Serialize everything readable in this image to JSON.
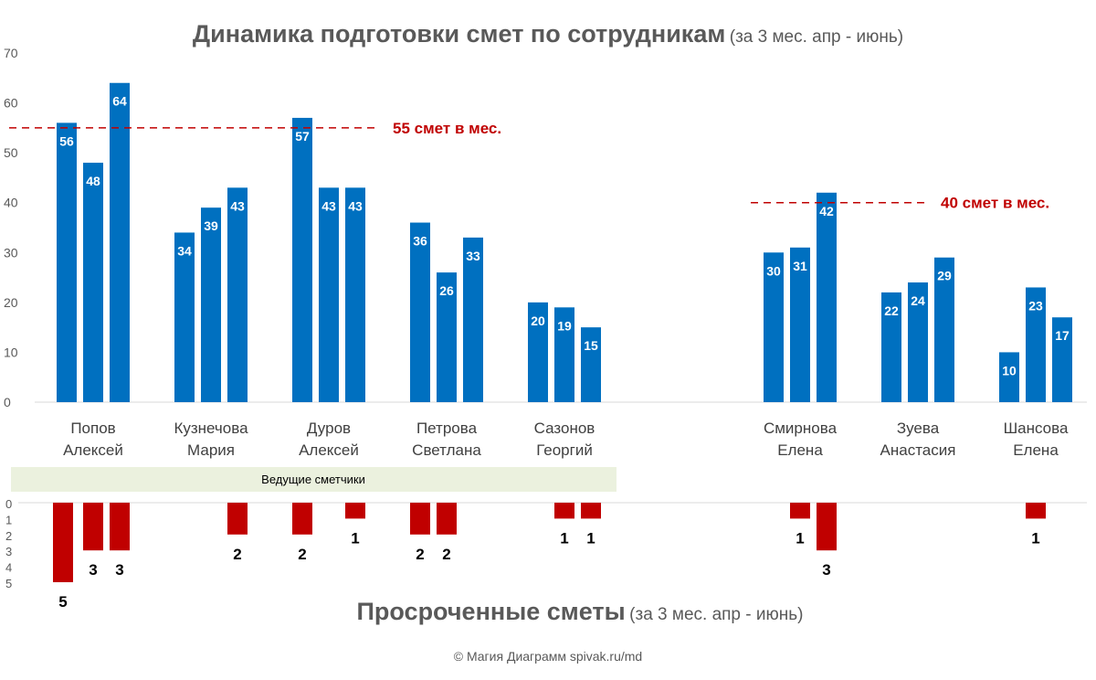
{
  "chart_data": [
    {
      "type": "bar",
      "title": "Динамика подготовки смет по сотрудникам",
      "subtitle": "(за 3 мес. апр - июнь)",
      "categories": [
        "Попов\nАлексей",
        "Кузнечова\nМария",
        "Дуров\nАлексей",
        "Петрова\nСветлана",
        "Сазонов\nГеоргий",
        "",
        "Смирнова\nЕлена",
        "Зуева\nАнастасия",
        "Шансова\nЕлена"
      ],
      "values": [
        [
          56,
          48,
          64
        ],
        [
          34,
          39,
          43
        ],
        [
          57,
          43,
          43
        ],
        [
          36,
          26,
          33
        ],
        [
          20,
          19,
          15
        ],
        null,
        [
          30,
          31,
          42
        ],
        [
          22,
          24,
          29
        ],
        [
          10,
          23,
          17
        ]
      ],
      "ylim": [
        0,
        70
      ],
      "yticks": [
        0,
        10,
        20,
        30,
        40,
        50,
        60,
        70
      ],
      "grid": false,
      "color": "#0070c0",
      "reference_lines": [
        {
          "value": 55,
          "label": "55 смет в мес.",
          "color": "#c00000",
          "span": "categories 1-3"
        },
        {
          "value": 40,
          "label": "40 смет в мес.",
          "color": "#c00000",
          "span": "categories 7-8"
        }
      ],
      "group_band": {
        "label": "Ведущие сметчики",
        "color": "#ebf1de"
      }
    },
    {
      "type": "bar",
      "title": "Просроченные сметы",
      "subtitle": "(за 3 мес. апр - июнь)",
      "orientation": "downward",
      "values": [
        [
          5,
          3,
          3
        ],
        [
          0,
          0,
          2
        ],
        [
          2,
          0,
          1
        ],
        [
          2,
          2,
          0
        ],
        [
          0,
          1,
          1
        ],
        null,
        [
          0,
          1,
          3
        ],
        [
          0,
          0,
          0
        ],
        [
          0,
          1,
          0
        ]
      ],
      "ylim": [
        0,
        5
      ],
      "yticks": [
        0,
        1,
        2,
        3,
        4,
        5
      ],
      "color": "#c00000"
    }
  ],
  "footer": "© Магия Диаграмм spivak.ru/md"
}
